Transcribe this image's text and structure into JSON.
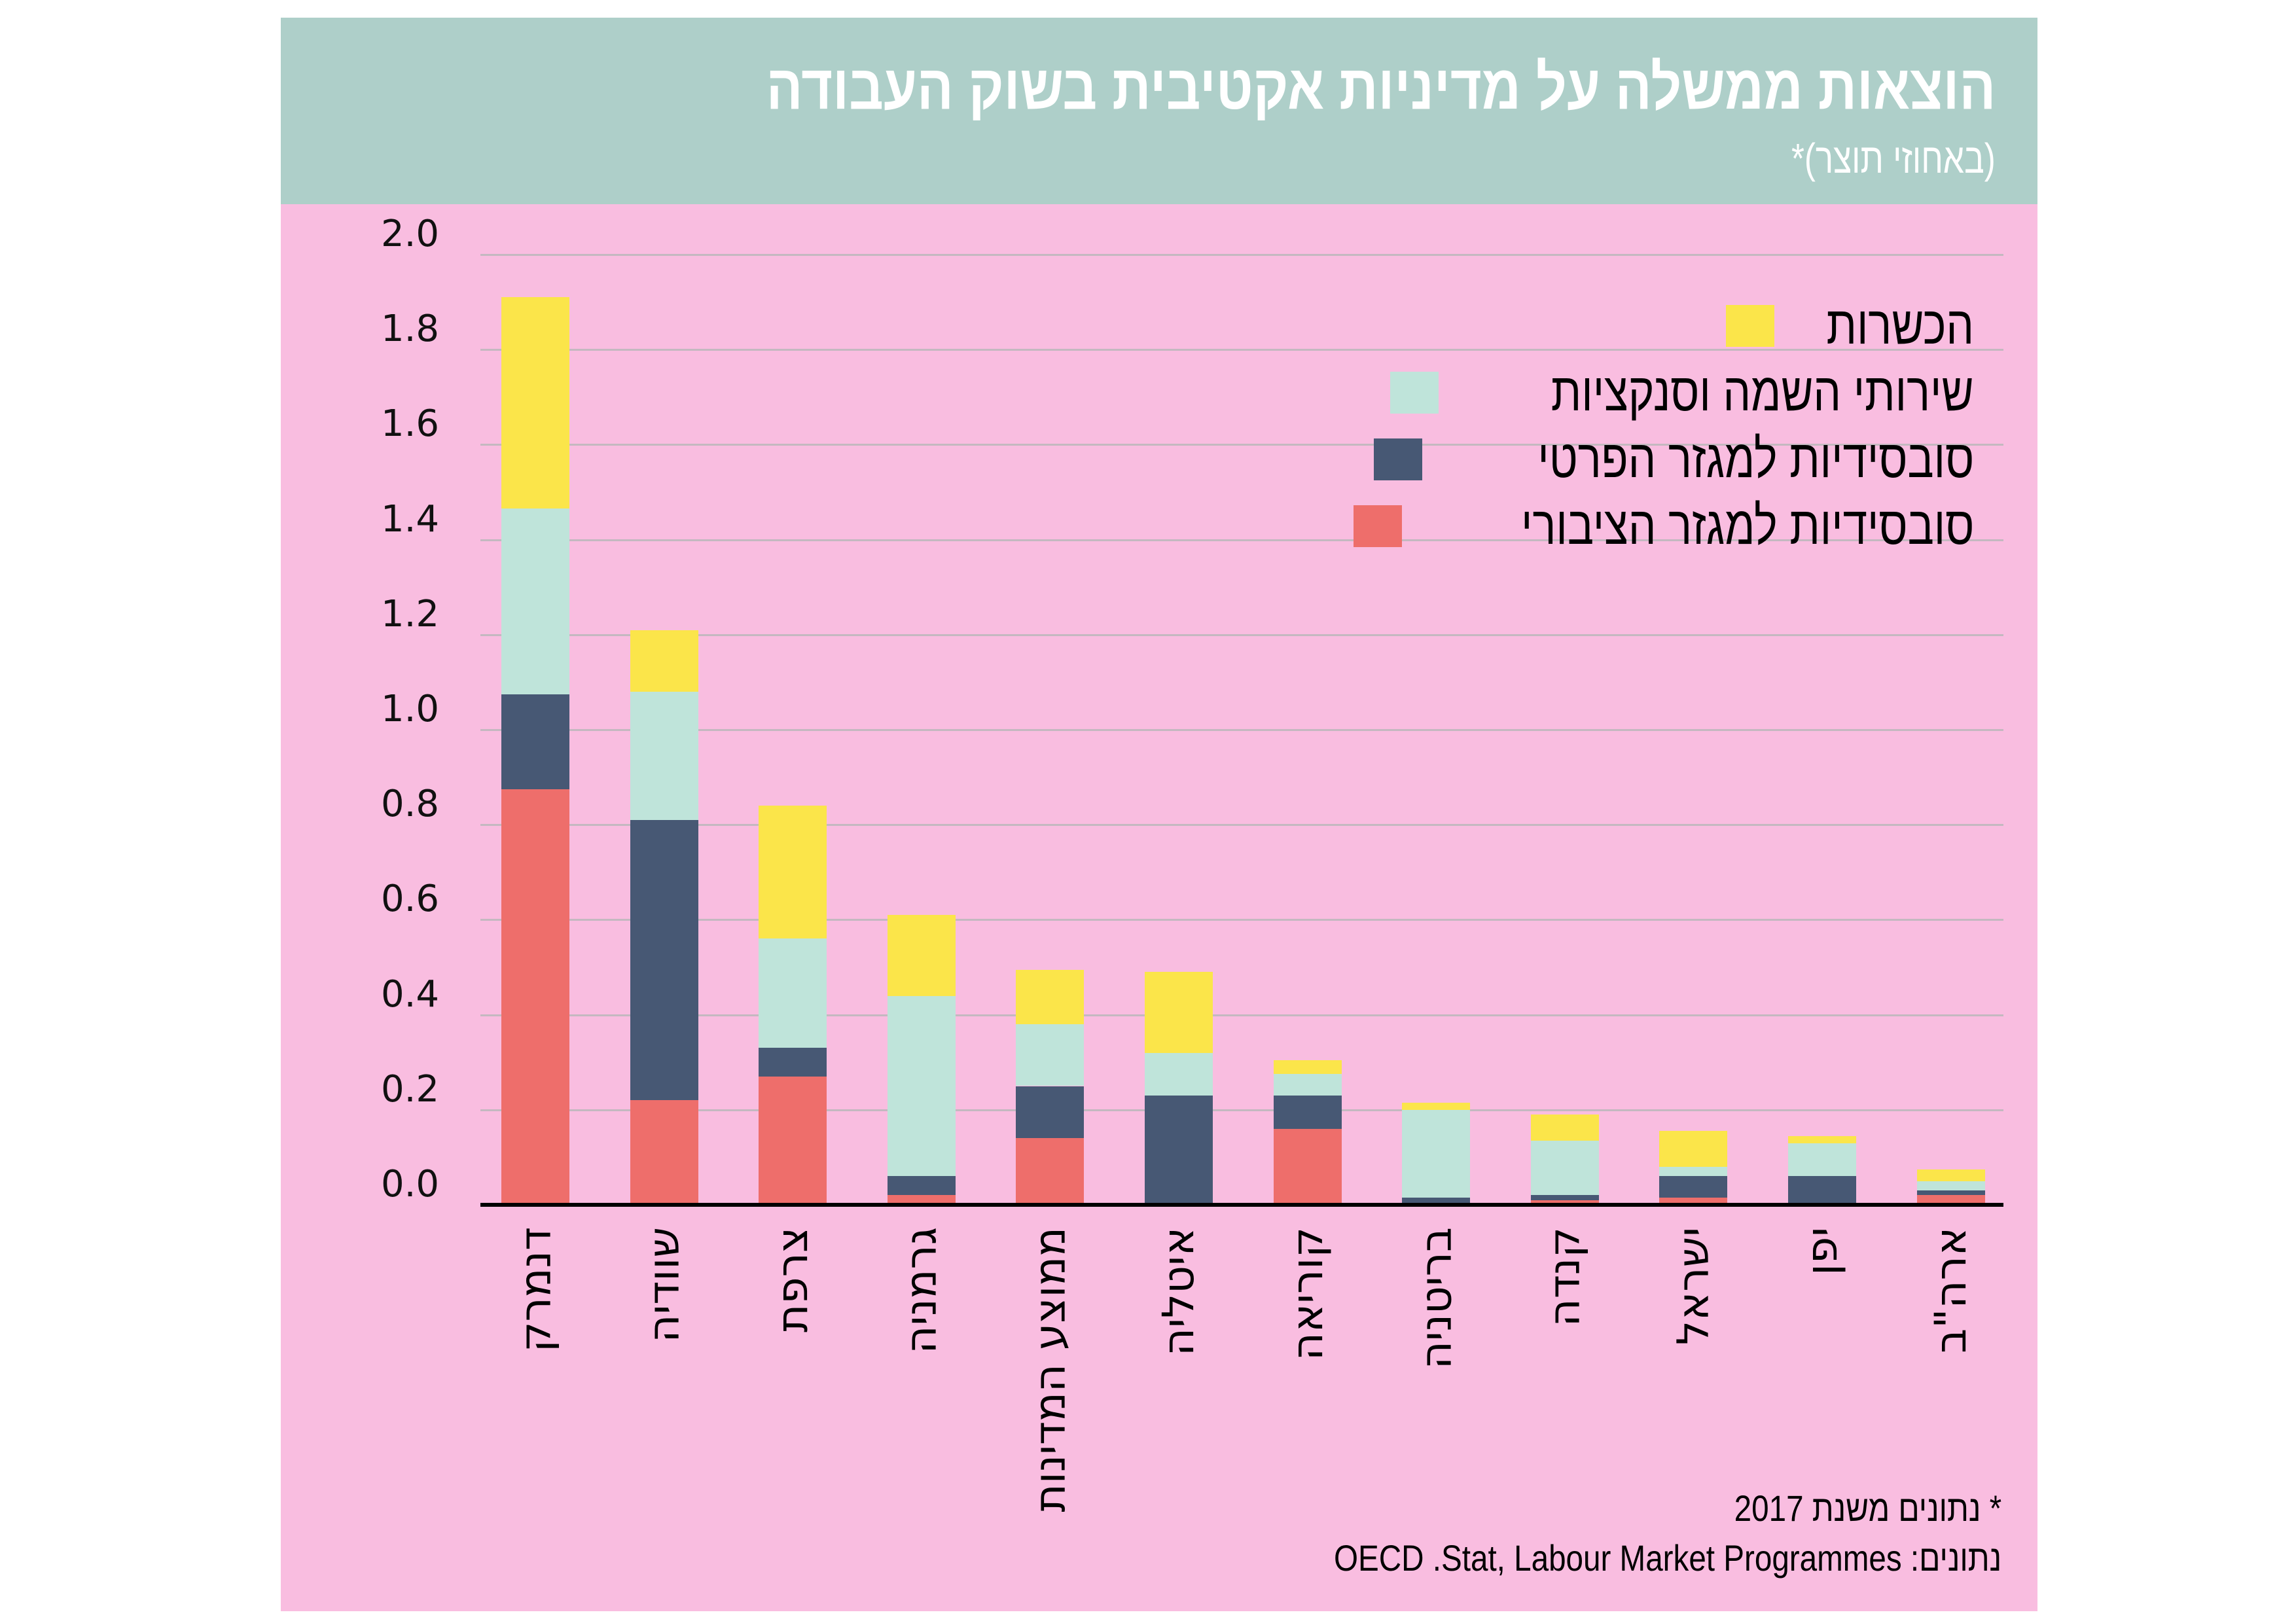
{
  "header": {
    "title": "הוצאות ממשלה על מדיניות אקטיבית בשוק העבודה",
    "subtitle": "(באחוזי תוצר)*"
  },
  "footnote": {
    "year_note": "* נתונים משנת 2017",
    "source": "נתונים: OECD .Stat, Labour Market Programmes"
  },
  "colors": {
    "header_bg": "#aecfc9",
    "chart_bg": "#f9bde0",
    "gridline": "#c4b8c0"
  },
  "chart_data": {
    "type": "bar",
    "stacked": true,
    "title": "הוצאות ממשלה על מדיניות אקטיבית בשוק העבודה",
    "ylabel": "",
    "xlabel": "",
    "ylim": [
      0,
      2.0
    ],
    "yticks": [
      "0.0",
      "0.2",
      "0.4",
      "0.6",
      "0.8",
      "1.0",
      "1.2",
      "1.4",
      "1.6",
      "1.8",
      "2.0"
    ],
    "grid": true,
    "legend_position": "top-right",
    "categories": [
      "דנמרק",
      "שוודיה",
      "צרפת",
      "גרמניה",
      "ממוצע המדינות",
      "איטליה",
      "קוריאה",
      "בריטניה",
      "קנדה",
      "ישראל",
      "יפן",
      "ארה\"ב"
    ],
    "series": [
      {
        "name": "סובסידיות למגזר הציבורי",
        "color": "#ee6e6b",
        "values": [
          0.875,
          0.22,
          0.27,
          0.02,
          0.14,
          0.0,
          0.16,
          0.0,
          0.01,
          0.015,
          0.0,
          0.02
        ]
      },
      {
        "name": "סובסידיות למגזר הפרטי",
        "color": "#475874",
        "values": [
          0.2,
          0.59,
          0.06,
          0.04,
          0.11,
          0.23,
          0.07,
          0.015,
          0.01,
          0.045,
          0.06,
          0.01
        ]
      },
      {
        "name": "שירותי השמה וסנקציות",
        "color": "#bfe4da",
        "values": [
          0.39,
          0.27,
          0.23,
          0.38,
          0.13,
          0.09,
          0.045,
          0.185,
          0.115,
          0.02,
          0.07,
          0.02
        ]
      },
      {
        "name": "הכשרות",
        "color": "#fbe54a",
        "values": [
          0.445,
          0.13,
          0.28,
          0.17,
          0.115,
          0.17,
          0.03,
          0.015,
          0.055,
          0.075,
          0.015,
          0.025
        ]
      }
    ]
  }
}
